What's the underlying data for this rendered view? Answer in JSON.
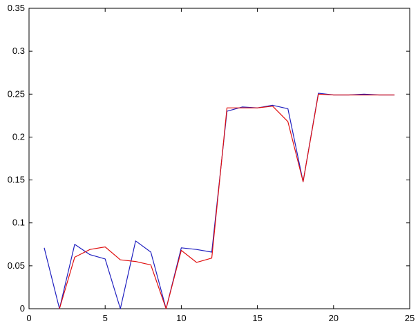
{
  "chart_data": {
    "type": "line",
    "xlim": [
      0,
      25
    ],
    "ylim": [
      0,
      0.35
    ],
    "xticks": [
      0,
      5,
      10,
      15,
      20,
      25
    ],
    "yticks": [
      0,
      0.05,
      0.1,
      0.15,
      0.2,
      0.25,
      0.3,
      0.35
    ],
    "xtick_labels": [
      "0",
      "5",
      "10",
      "15",
      "20",
      "25"
    ],
    "ytick_labels": [
      "0",
      "0.05",
      "0.1",
      "0.15",
      "0.2",
      "0.25",
      "0.3",
      "0.35"
    ],
    "grid": false,
    "series": [
      {
        "color": "#1f1fbf",
        "x": [
          1,
          2,
          3,
          4,
          5,
          6,
          7,
          8,
          9,
          10,
          11,
          12,
          13,
          14,
          15,
          16,
          17,
          18,
          19,
          20,
          21,
          22,
          23,
          24
        ],
        "y": [
          0.071,
          0.0,
          0.075,
          0.063,
          0.058,
          0.0,
          0.079,
          0.066,
          0.0,
          0.071,
          0.069,
          0.066,
          0.23,
          0.235,
          0.234,
          0.237,
          0.233,
          0.148,
          0.251,
          0.249,
          0.249,
          0.25,
          0.249,
          0.249
        ]
      },
      {
        "color": "#e01010",
        "x": [
          2,
          3,
          4,
          5,
          6,
          7,
          8,
          9,
          10,
          11,
          12,
          13,
          14,
          15,
          16,
          17,
          18,
          19,
          20,
          21,
          22,
          23,
          24
        ],
        "y": [
          0.0,
          0.06,
          0.069,
          0.072,
          0.057,
          0.055,
          0.051,
          0.0,
          0.068,
          0.054,
          0.059,
          0.234,
          0.234,
          0.234,
          0.236,
          0.218,
          0.148,
          0.25,
          0.249,
          0.249,
          0.249,
          0.249,
          0.249
        ]
      }
    ]
  }
}
